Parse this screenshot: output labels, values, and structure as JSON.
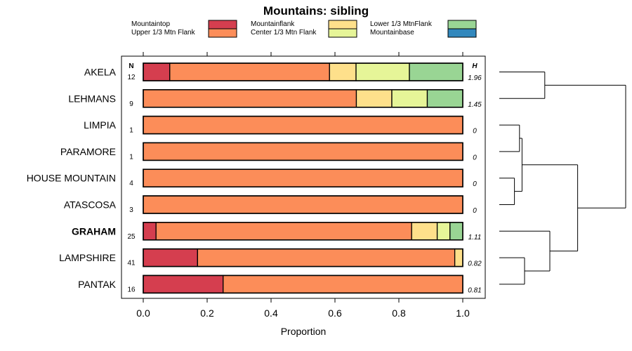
{
  "chart_data": {
    "type": "bar",
    "orientation": "horizontal",
    "stacked": true,
    "title": "Mountains: sibling",
    "xlabel": "Proportion",
    "ylabel": "",
    "xlim": [
      0,
      1
    ],
    "x_ticks": [
      "0.0",
      "0.2",
      "0.4",
      "0.6",
      "0.8",
      "1.0"
    ],
    "n_header": "N",
    "h_header": "H",
    "legend": [
      {
        "name": "Mountaintop",
        "color": "#d53e4f"
      },
      {
        "name": "Upper 1/3 Mtn Flank",
        "color": "#fc8d59"
      },
      {
        "name": "Mountainflank",
        "color": "#fee08b"
      },
      {
        "name": "Center 1/3 Mtn Flank",
        "color": "#e6f598"
      },
      {
        "name": "Lower 1/3 MtnFlank",
        "color": "#99d594"
      },
      {
        "name": "Mountainbase",
        "color": "#3288bd"
      }
    ],
    "categories": [
      "AKELA",
      "LEHMANS",
      "LIMPIA",
      "PARAMORE",
      "HOUSE MOUNTAIN",
      "ATASCOSA",
      "GRAHAM",
      "LAMPSHIRE",
      "PANTAK"
    ],
    "highlighted": "GRAHAM",
    "n": [
      "12",
      "9",
      "1",
      "1",
      "4",
      "3",
      "25",
      "41",
      "16"
    ],
    "h": [
      "1.96",
      "1.45",
      "0",
      "0",
      "0",
      "0",
      "1.11",
      "0.82",
      "0.81"
    ],
    "series": [
      {
        "name": "Mountaintop",
        "values": [
          0.083,
          0,
          0,
          0,
          0,
          0,
          0.04,
          0.17,
          0.25
        ]
      },
      {
        "name": "Upper 1/3 Mtn Flank",
        "values": [
          0.5,
          0.667,
          1,
          1,
          1,
          1,
          0.8,
          0.805,
          0.75
        ]
      },
      {
        "name": "Mountainflank",
        "values": [
          0.083,
          0.111,
          0,
          0,
          0,
          0,
          0.08,
          0.025,
          0
        ]
      },
      {
        "name": "Center 1/3 Mtn Flank",
        "values": [
          0.167,
          0.111,
          0,
          0,
          0,
          0,
          0.04,
          0,
          0
        ]
      },
      {
        "name": "Lower 1/3 MtnFlank",
        "values": [
          0.167,
          0.111,
          0,
          0,
          0,
          0,
          0.04,
          0,
          0
        ]
      },
      {
        "name": "Mountainbase",
        "values": [
          0,
          0,
          0,
          0,
          0,
          0,
          0,
          0,
          0
        ]
      }
    ],
    "dendrogram": {
      "merges": [
        {
          "a": "LIMPIA",
          "b": "PARAMORE",
          "height": 0.04
        },
        {
          "a": "HOUSE MOUNTAIN",
          "b": "ATASCOSA",
          "height": 0.03
        },
        {
          "a": "LIMPIA+PARAMORE",
          "b": "HOUSE MOUNTAIN+ATASCOSA",
          "height": 0.045
        },
        {
          "a": "LAMPSHIRE",
          "b": "PANTAK",
          "height": 0.05
        },
        {
          "a": "AKELA",
          "b": "LEHMANS",
          "height": 0.09
        },
        {
          "a": "GRAHAM",
          "b": "LAMPSHIRE+PANTAK",
          "height": 0.1
        },
        {
          "a": "LIMPIA+PARAMORE+HOUSE MOUNTAIN+ATASCOSA",
          "b": "GRAHAM+LAMPSHIRE+PANTAK",
          "height": 0.155
        },
        {
          "a": "AKELA+LEHMANS",
          "b": "rest",
          "height": 0.25
        }
      ]
    }
  }
}
